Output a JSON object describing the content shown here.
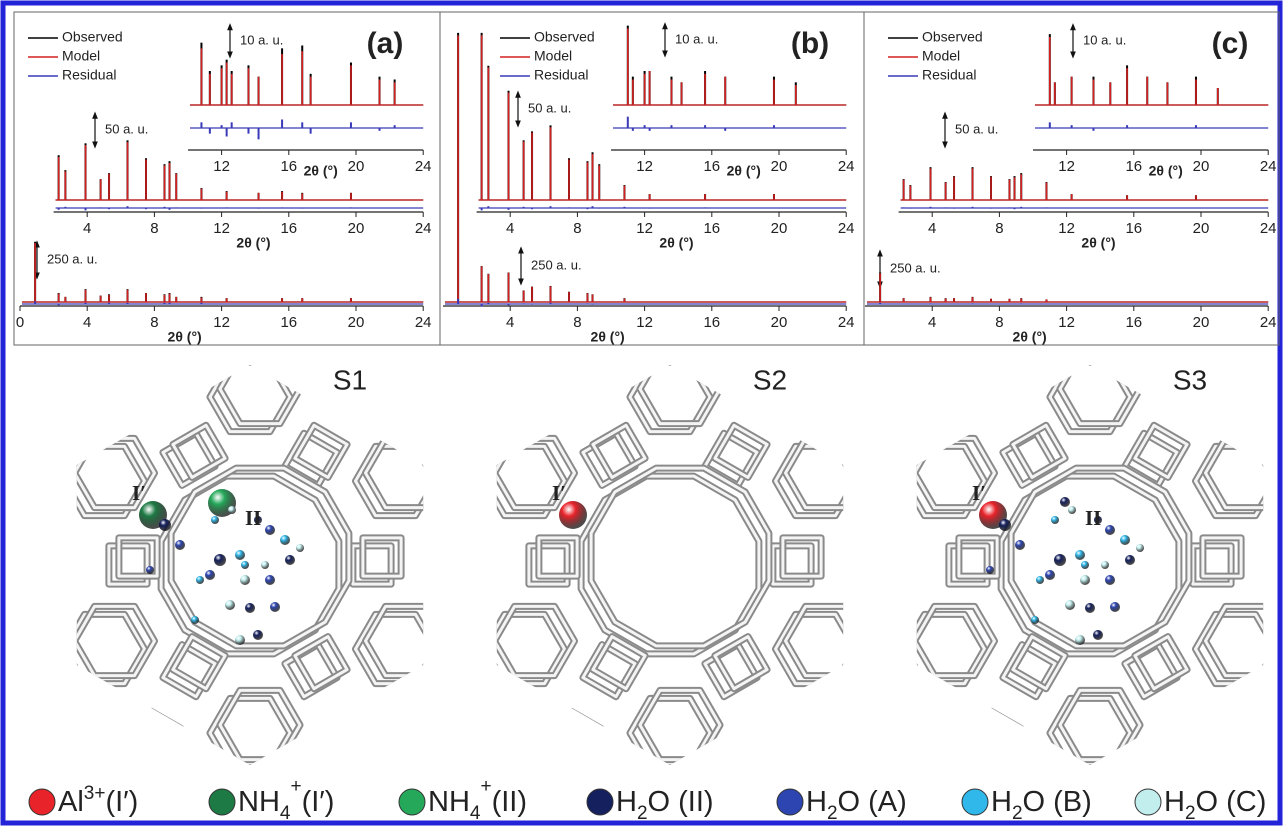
{
  "chart_data": [
    {
      "type": "stem",
      "xlim": [
        0,
        24
      ],
      "xticks": [
        0,
        4,
        8,
        12,
        16,
        20,
        24
      ],
      "xlabel": "2θ (°)",
      "ylim": [
        0,
        2200
      ],
      "scale_bar": {
        "label": "250 a. u.",
        "value": 250
      },
      "x": [
        0.9,
        2.3,
        2.7,
        3.9,
        4.8,
        5.3,
        6.4,
        7.5,
        8.6,
        8.9,
        9.3,
        10.8,
        12.3,
        15.6,
        16.8,
        19.7
      ],
      "series": [
        {
          "color": "#000000",
          "values": [
            470,
            70,
            40,
            100,
            50,
            60,
            100,
            70,
            60,
            70,
            40,
            40,
            30,
            30,
            30,
            30
          ]
        },
        {
          "color": "#d42020",
          "values": [
            460,
            65,
            40,
            95,
            50,
            55,
            95,
            70,
            55,
            65,
            40,
            35,
            30,
            30,
            30,
            30
          ]
        },
        {
          "color": "#3a3ab8",
          "values": [
            20,
            -10,
            0,
            10,
            0,
            10,
            10,
            0,
            10,
            10,
            0,
            10,
            0,
            0,
            0,
            0
          ]
        }
      ]
    },
    {
      "type": "stem",
      "xlim": [
        2,
        24
      ],
      "xticks": [
        4,
        8,
        12,
        16,
        20,
        24
      ],
      "xlabel": "2θ (°)",
      "ylim": [
        0,
        310
      ],
      "scale_bar": {
        "label": "50 a. u.",
        "value": 50
      },
      "x": [
        2.3,
        2.7,
        3.9,
        4.8,
        5.3,
        6.4,
        7.5,
        8.6,
        8.9,
        9.3,
        10.8,
        12.3,
        14.2,
        15.6,
        16.8,
        19.7
      ],
      "series": [
        {
          "color": "#000000",
          "values": [
            75,
            50,
            95,
            35,
            45,
            100,
            70,
            60,
            65,
            45,
            20,
            15,
            12,
            15,
            12,
            12
          ]
        },
        {
          "color": "#d42020",
          "values": [
            72,
            48,
            92,
            35,
            44,
            97,
            68,
            58,
            62,
            44,
            19,
            14,
            12,
            14,
            11,
            12
          ]
        },
        {
          "color": "#3a3ab8",
          "values": [
            -3,
            2,
            -4,
            1,
            -2,
            3,
            -2,
            2,
            -3,
            1,
            -1,
            1,
            -1,
            1,
            -1,
            1
          ]
        }
      ]
    },
    {
      "type": "stem",
      "panel_label": "(a)",
      "xlim": [
        10,
        24
      ],
      "xticks": [
        12,
        16,
        20,
        24
      ],
      "xlabel": "2θ (°)",
      "ylim": [
        0,
        30
      ],
      "scale_bar": {
        "label": "10 a. u.",
        "value": 10
      },
      "x": [
        10.8,
        11.3,
        12.0,
        12.3,
        12.6,
        13.6,
        14.2,
        15.6,
        16.8,
        17.3,
        19.7,
        21.4,
        22.3
      ],
      "series": [
        {
          "name": "Observed",
          "color": "#000000",
          "values": [
            22,
            12,
            14,
            16,
            12,
            14,
            10,
            20,
            21,
            11,
            15,
            10,
            9
          ]
        },
        {
          "name": "Model",
          "color": "#d42020",
          "values": [
            20,
            11,
            13,
            15,
            11,
            13,
            10,
            18,
            19,
            10,
            14,
            9,
            8
          ]
        },
        {
          "name": "Residual",
          "color": "#3a3ab8",
          "values": [
            2,
            -2,
            1,
            -3,
            2,
            -2,
            -4,
            3,
            2,
            -2,
            2,
            -1,
            1
          ]
        }
      ]
    },
    {
      "type": "stem",
      "xlim": [
        0,
        24
      ],
      "xticks": [
        4,
        8,
        12,
        16,
        20,
        24
      ],
      "xlabel": "2θ (°)",
      "ylim": [
        0,
        2200
      ],
      "scale_bar": {
        "label": "250 a. u.",
        "value": 250
      },
      "x": [
        0.9,
        2.3,
        2.7,
        3.9,
        4.8,
        5.3,
        6.4,
        7.5,
        8.6,
        8.9,
        10.8
      ],
      "series": [
        {
          "color": "#000000",
          "values": [
            2100,
            280,
            220,
            230,
            90,
            120,
            125,
            80,
            70,
            60,
            30
          ]
        },
        {
          "color": "#d42020",
          "values": [
            2080,
            278,
            218,
            228,
            88,
            118,
            122,
            78,
            68,
            58,
            28
          ]
        },
        {
          "color": "#3a3ab8",
          "values": [
            40,
            -20,
            10,
            -10,
            5,
            -5,
            10,
            0,
            5,
            -5,
            0
          ]
        }
      ]
    },
    {
      "type": "stem",
      "xlim": [
        2,
        24
      ],
      "xticks": [
        4,
        8,
        12,
        16,
        20,
        24
      ],
      "xlabel": "2θ (°)",
      "ylim": [
        0,
        310
      ],
      "scale_bar": {
        "label": "50 a. u.",
        "value": 50
      },
      "x": [
        2.3,
        2.7,
        3.9,
        4.8,
        5.3,
        6.4,
        7.5,
        8.6,
        8.9,
        9.3,
        10.8,
        12.3,
        15.6,
        19.7
      ],
      "series": [
        {
          "color": "#000000",
          "values": [
            280,
            225,
            183,
            100,
            115,
            125,
            70,
            65,
            80,
            60,
            25,
            10,
            10,
            10
          ]
        },
        {
          "color": "#d42020",
          "values": [
            276,
            222,
            180,
            98,
            113,
            122,
            68,
            63,
            77,
            58,
            24,
            10,
            10,
            10
          ]
        },
        {
          "color": "#3a3ab8",
          "values": [
            -4,
            3,
            -3,
            2,
            -2,
            3,
            1,
            -2,
            3,
            -1,
            2,
            -1,
            1,
            0
          ]
        }
      ]
    },
    {
      "type": "stem",
      "panel_label": "(b)",
      "xlim": [
        10,
        24
      ],
      "xticks": [
        12,
        16,
        20,
        24
      ],
      "xlabel": "2θ (°)",
      "ylim": [
        0,
        30
      ],
      "scale_bar": {
        "label": "10 a. u.",
        "value": 10
      },
      "x": [
        11.0,
        11.3,
        12.0,
        12.3,
        13.6,
        14.2,
        15.6,
        16.8,
        19.7,
        21.0
      ],
      "series": [
        {
          "name": "Observed",
          "color": "#000000",
          "values": [
            28,
            10,
            12,
            12,
            10,
            8,
            12,
            10,
            10,
            8
          ]
        },
        {
          "name": "Model",
          "color": "#d42020",
          "values": [
            27,
            9,
            11,
            12,
            9,
            8,
            11,
            10,
            9,
            7
          ]
        },
        {
          "name": "Residual",
          "color": "#3a3ab8",
          "values": [
            4,
            -1,
            1,
            -1,
            1,
            0,
            1,
            -1,
            1,
            0
          ]
        }
      ]
    },
    {
      "type": "stem",
      "xlim": [
        0,
        24
      ],
      "xticks": [
        4,
        8,
        12,
        16,
        20,
        24
      ],
      "xlabel": "2θ (°)",
      "ylim": [
        0,
        2200
      ],
      "scale_bar": {
        "label": "250 a. u.",
        "value": 250
      },
      "x": [
        0.9,
        2.3,
        3.9,
        4.8,
        5.3,
        6.4,
        7.5,
        8.6,
        9.3,
        10.8
      ],
      "series": [
        {
          "color": "#000000",
          "values": [
            230,
            30,
            40,
            30,
            30,
            40,
            25,
            25,
            30,
            20
          ]
        },
        {
          "color": "#d42020",
          "values": [
            225,
            30,
            38,
            28,
            30,
            38,
            25,
            24,
            28,
            20
          ]
        },
        {
          "color": "#3a3ab8",
          "values": [
            10,
            0,
            5,
            0,
            0,
            5,
            0,
            0,
            5,
            0
          ]
        }
      ]
    },
    {
      "type": "stem",
      "xlim": [
        2,
        24
      ],
      "xticks": [
        4,
        8,
        12,
        16,
        20,
        24
      ],
      "xlabel": "2θ (°)",
      "ylim": [
        0,
        310
      ],
      "scale_bar": {
        "label": "50 a. u.",
        "value": 50
      },
      "x": [
        2.3,
        2.7,
        3.9,
        4.8,
        5.3,
        6.4,
        7.5,
        8.6,
        8.9,
        9.3,
        10.8,
        12.3,
        15.6,
        19.7
      ],
      "series": [
        {
          "color": "#000000",
          "values": [
            35,
            25,
            55,
            30,
            40,
            55,
            40,
            35,
            40,
            45,
            30,
            10,
            8,
            8
          ]
        },
        {
          "color": "#d42020",
          "values": [
            34,
            24,
            53,
            29,
            39,
            53,
            39,
            34,
            38,
            43,
            29,
            10,
            8,
            8
          ]
        },
        {
          "color": "#3a3ab8",
          "values": [
            1,
            -1,
            2,
            1,
            -1,
            2,
            -1,
            1,
            -2,
            2,
            1,
            0,
            0,
            0
          ]
        }
      ]
    },
    {
      "type": "stem",
      "panel_label": "(c)",
      "xlim": [
        10,
        24
      ],
      "xticks": [
        12,
        16,
        20,
        24
      ],
      "xlabel": "2θ (°)",
      "ylim": [
        0,
        30
      ],
      "scale_bar": {
        "label": "10 a. u.",
        "value": 10
      },
      "x": [
        11.0,
        11.3,
        12.3,
        13.6,
        14.6,
        15.6,
        16.8,
        18.0,
        19.7,
        21.0
      ],
      "series": [
        {
          "name": "Observed",
          "color": "#000000",
          "values": [
            25,
            8,
            10,
            10,
            8,
            14,
            10,
            8,
            10,
            6
          ]
        },
        {
          "name": "Model",
          "color": "#d42020",
          "values": [
            24,
            8,
            10,
            9,
            8,
            13,
            10,
            8,
            9,
            6
          ]
        },
        {
          "name": "Residual",
          "color": "#3a3ab8",
          "values": [
            2,
            0,
            1,
            -1,
            0,
            1,
            0,
            0,
            1,
            0
          ]
        }
      ]
    }
  ],
  "structures": [
    {
      "label": "S1",
      "sites": [
        "I′",
        "II"
      ]
    },
    {
      "label": "S2",
      "sites": [
        "I′"
      ]
    },
    {
      "label": "S3",
      "sites": [
        "I′",
        "II"
      ]
    }
  ],
  "legend": [
    {
      "color": "#e8232a",
      "text": "Al",
      "sup": "3+",
      "tail": "(I′)"
    },
    {
      "color": "#1d7a44",
      "text": "NH",
      "sub": "4",
      "sup": "+",
      "tail": "(I′)"
    },
    {
      "color": "#25a85a",
      "text": "NH",
      "sub": "4",
      "sup": "+",
      "tail": "(II)"
    },
    {
      "color": "#15205e",
      "text": "H",
      "sub": "2",
      "tail": "O (II)"
    },
    {
      "color": "#2c45b0",
      "text": "H",
      "sub": "2",
      "tail": "O (A)"
    },
    {
      "color": "#30b8ea",
      "text": "H",
      "sub": "2",
      "tail": "O (B)"
    },
    {
      "color": "#c2eeee",
      "text": "H",
      "sub": "2",
      "tail": "O (C)"
    }
  ]
}
